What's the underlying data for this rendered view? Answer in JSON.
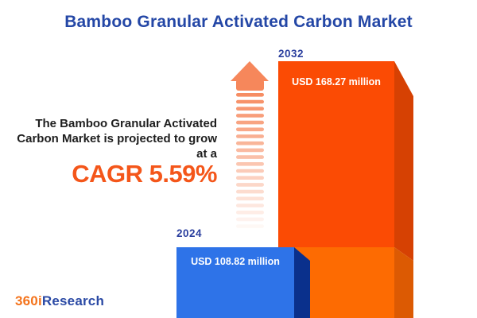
{
  "header": {
    "title": "Bamboo Granular Activated Carbon Market"
  },
  "description": {
    "lines": [
      "The Bamboo Granular Activated",
      "Carbon Market is projected to grow",
      "at a"
    ],
    "cagr_label": "CAGR 5.59%"
  },
  "bars": [
    {
      "year": "2024",
      "value_label": "USD 108.82 million"
    },
    {
      "year": "2032",
      "value_label": "USD 168.27 million"
    }
  ],
  "logo": {
    "part1": "360i",
    "part2": "Research"
  },
  "icons": {
    "growth_arrow": "up-arrow-with-fading-stripes"
  },
  "colors": {
    "title_blue": "#2447A6",
    "description_text": "#1e1e1e",
    "cagr_orange": "#F4561A",
    "year_label_blue": "#2B3F9E",
    "bar_blue_front": "#2E73E8",
    "bar_blue_side": "#0A308C",
    "bar_orange_front_top": "#FB4B04",
    "bar_orange_front_bottom": "#FD6B02",
    "bar_orange_side_top": "#D64103",
    "bar_orange_side_bottom": "#DC5A03",
    "arrow_orange": "#F6875B",
    "logo_orange": "#F4731B",
    "logo_blue": "#2B4AA5",
    "value_text": "#ffffff"
  },
  "chart_data": {
    "type": "bar",
    "title": "Bamboo Granular Activated Carbon Market",
    "categories": [
      "2024",
      "2032"
    ],
    "values": [
      108.82,
      168.27
    ],
    "unit": "USD million",
    "value_labels": [
      "USD 108.82 million",
      "USD 168.27 million"
    ],
    "cagr_percent": 5.59,
    "annotation": "The Bamboo Granular Activated Carbon Market is projected to grow at a CAGR 5.59%",
    "series_colors": [
      "#2E73E8",
      "#FB4B04"
    ],
    "legend_position": "none",
    "grid": false,
    "style": "3d-infographic-bars"
  }
}
